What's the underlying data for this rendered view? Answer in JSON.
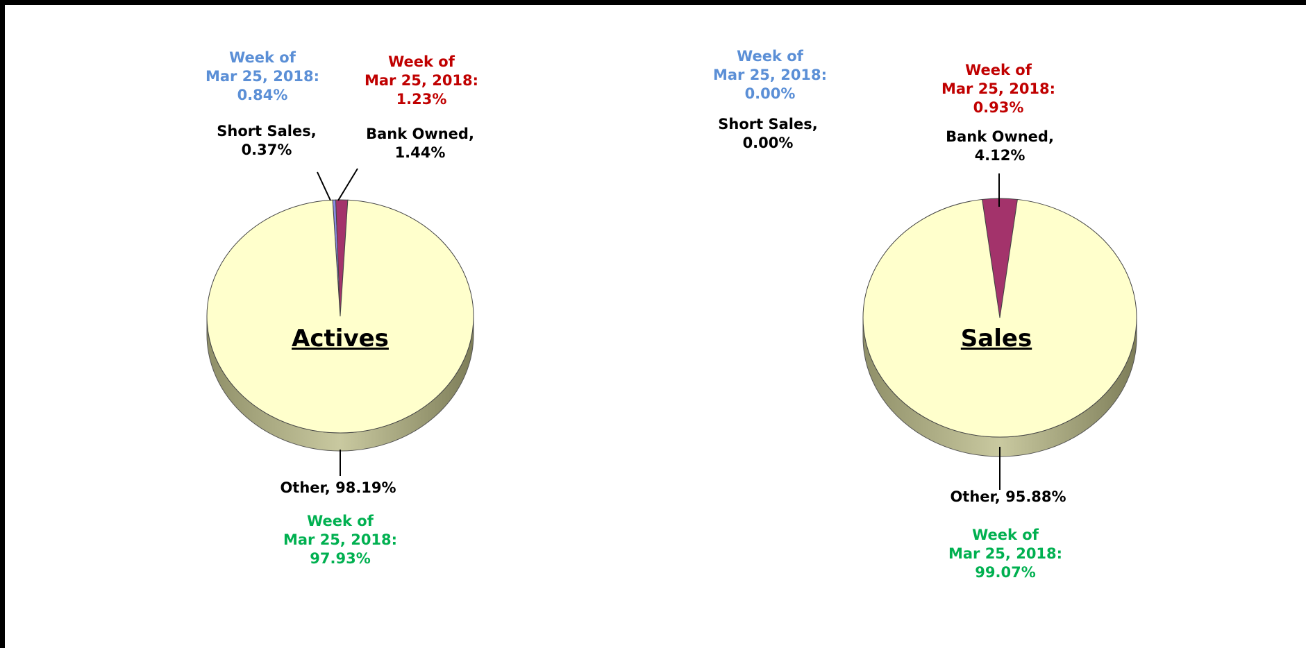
{
  "chart_data": [
    {
      "type": "pie",
      "title": "Actives",
      "categories": [
        "Short Sales,",
        "Bank Owned,",
        "Other,"
      ],
      "values": [
        0.37,
        1.44,
        98.19
      ],
      "value_labels": [
        "0.37%",
        "1.44%",
        "98.19%"
      ],
      "colors": [
        "#8a8ae6",
        "#a3336b",
        "#ffffcc"
      ],
      "comparison": {
        "label": [
          "Week of",
          "Mar 25, 2018:"
        ],
        "values": [
          0.84,
          1.23,
          97.93
        ],
        "value_labels": [
          "0.84%",
          "1.23%",
          "97.93%"
        ],
        "colors": [
          "#5b8fd6",
          "#c00000",
          "#00b050"
        ]
      }
    },
    {
      "type": "pie",
      "title": "Sales",
      "categories": [
        "Short Sales,",
        "Bank Owned,",
        "Other,"
      ],
      "values": [
        0.0,
        4.12,
        95.88
      ],
      "value_labels": [
        "0.00%",
        "4.12%",
        "95.88%"
      ],
      "colors": [
        "#8a8ae6",
        "#a3336b",
        "#ffffcc"
      ],
      "comparison": {
        "label": [
          "Week of",
          "Mar 25, 2018:"
        ],
        "values": [
          0.0,
          0.93,
          99.07
        ],
        "value_labels": [
          "0.00%",
          "0.93%",
          "99.07%"
        ],
        "colors": [
          "#5b8fd6",
          "#c00000",
          "#00b050"
        ]
      }
    }
  ]
}
